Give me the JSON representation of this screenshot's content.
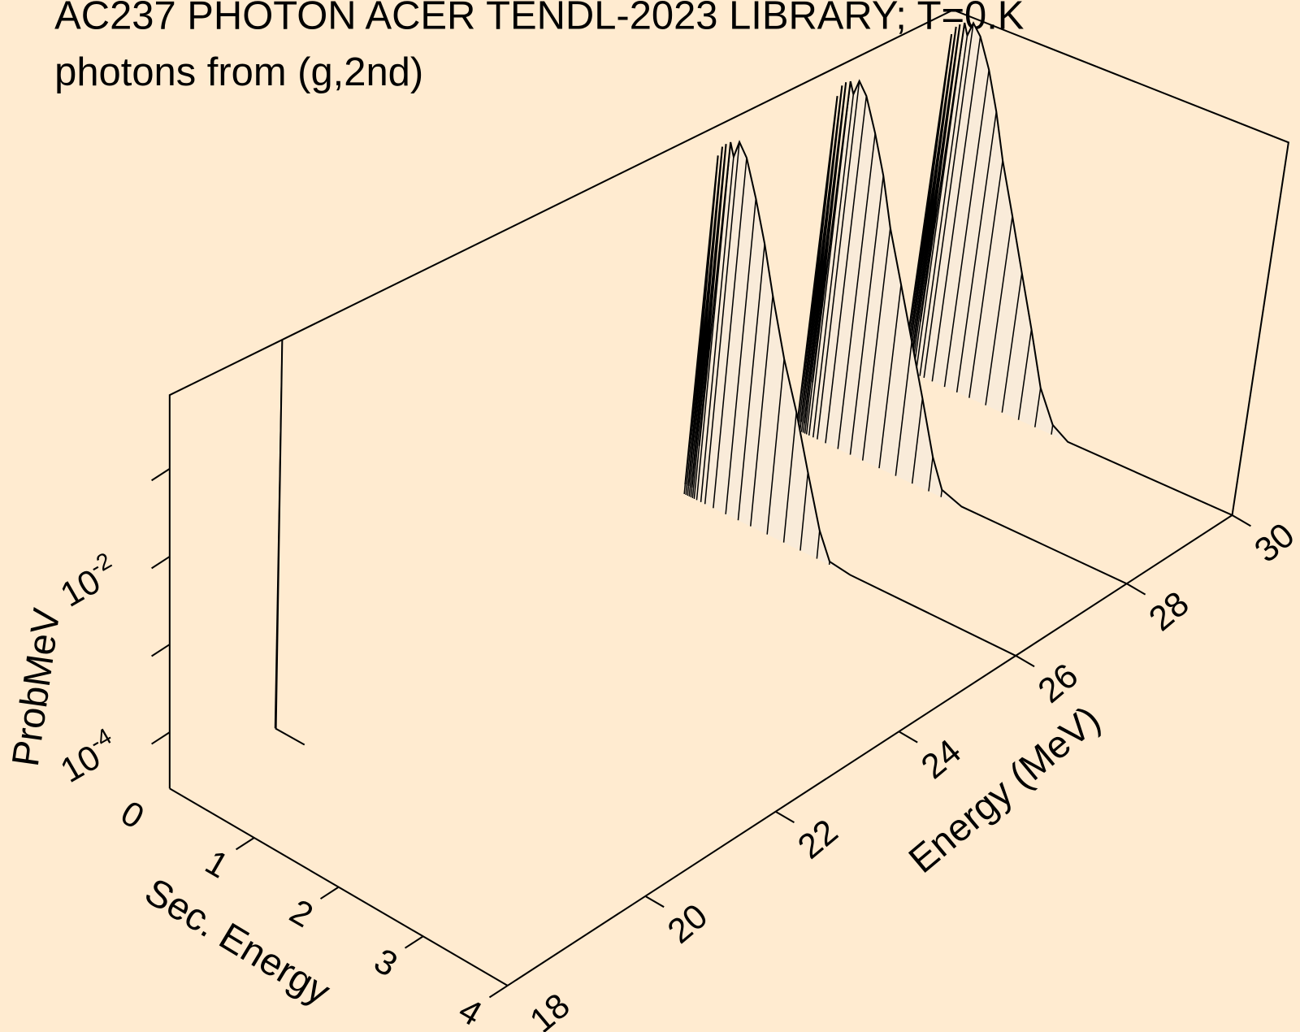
{
  "chart_data": {
    "type": "surface3d",
    "title": "AC237 PHOTON ACER TENDL-2023 LIBRARY; T=0.K",
    "subtitle": "photons from (g,2nd)",
    "xlabel": "Sec. Energy",
    "ylabel": "Energy (MeV)",
    "zlabel": "ProbMeV",
    "xlim": [
      0,
      4
    ],
    "xticks": [
      0,
      1,
      2,
      3,
      4
    ],
    "ylim": [
      18,
      30
    ],
    "yticks": [
      18,
      20,
      22,
      24,
      26,
      28,
      30
    ],
    "zlim": [
      2.29e-05,
      0.69
    ],
    "zlog": true,
    "zticks": [
      {
        "value": 0.0001,
        "label": "10",
        "exponent": "-4"
      },
      {
        "value": 0.001,
        "label": null
      },
      {
        "value": 0.01,
        "label": "10",
        "exponent": "-2"
      },
      {
        "value": 0.1,
        "label": null
      }
    ],
    "color": "#f9ebd9",
    "series": [
      {
        "energy": 30,
        "x": [
          0,
          0.02,
          0.04,
          0.06,
          0.08,
          0.1,
          0.12,
          0.15,
          0.2,
          0.25,
          0.35,
          0.5,
          0.65,
          0.8,
          1.0,
          1.2,
          1.4,
          1.6,
          1.8,
          2.0,
          3.0,
          4.0
        ],
        "values": [
          3e-05,
          0.35,
          3e-05,
          0.45,
          3e-05,
          0.5,
          0.0001,
          0.55,
          0.4,
          0.6,
          0.45,
          0.2,
          0.07,
          0.02,
          0.005,
          0.0012,
          0.0003,
          7e-05,
          3e-05,
          2.29e-05,
          2.29e-05,
          2.29e-05
        ]
      },
      {
        "energy": 28,
        "x": [
          0,
          0.02,
          0.04,
          0.06,
          0.08,
          0.1,
          0.12,
          0.15,
          0.2,
          0.25,
          0.35,
          0.5,
          0.65,
          0.8,
          1.0,
          1.2,
          1.4,
          1.6,
          1.75,
          2.0,
          3.0,
          4.0
        ],
        "values": [
          3e-05,
          0.3,
          3e-05,
          0.42,
          3e-05,
          0.48,
          0.0001,
          0.52,
          0.38,
          0.58,
          0.42,
          0.17,
          0.06,
          0.016,
          0.004,
          0.001,
          0.00025,
          6e-05,
          2.8e-05,
          2.29e-05,
          2.29e-05,
          2.29e-05
        ]
      },
      {
        "energy": 26,
        "x": [
          0,
          0.02,
          0.04,
          0.06,
          0.08,
          0.1,
          0.12,
          0.15,
          0.2,
          0.25,
          0.35,
          0.5,
          0.65,
          0.8,
          1.0,
          1.2,
          1.4,
          1.6,
          1.75,
          2.0,
          3.0,
          4.0
        ],
        "values": [
          3e-05,
          0.3,
          3e-05,
          0.4,
          3e-05,
          0.45,
          0.0001,
          0.5,
          0.35,
          0.56,
          0.4,
          0.15,
          0.05,
          0.014,
          0.003,
          0.00085,
          0.0002,
          5e-05,
          2.5e-05,
          2.29e-05,
          2.29e-05,
          2.29e-05
        ]
      },
      {
        "energy": 19.5,
        "x": [
          0,
          0.01,
          0.35
        ],
        "values": [
          0.69,
          2.29e-05,
          2.29e-05
        ]
      }
    ]
  }
}
